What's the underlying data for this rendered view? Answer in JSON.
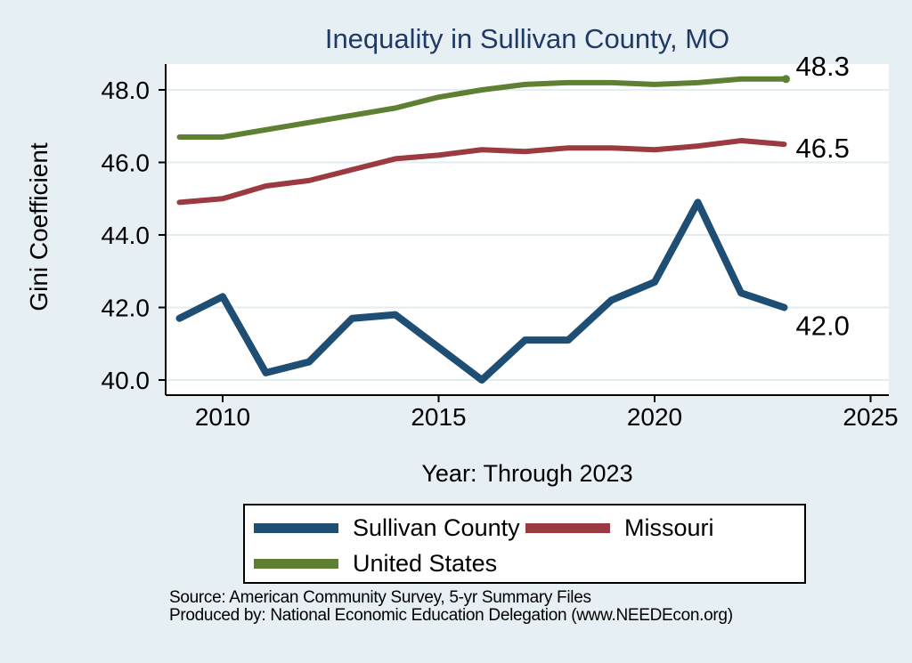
{
  "chart_data": {
    "type": "line",
    "title": "Inequality in Sullivan County, MO",
    "ylabel": "Gini Coefficient",
    "xlabel": "Year: Through 2023",
    "x": [
      2009,
      2010,
      2011,
      2012,
      2013,
      2014,
      2015,
      2016,
      2017,
      2018,
      2019,
      2020,
      2021,
      2022,
      2023
    ],
    "series": [
      {
        "name": "Sullivan County",
        "color": "#1f4e74",
        "values": [
          41.7,
          42.3,
          40.2,
          40.5,
          41.7,
          41.8,
          40.9,
          40.0,
          41.1,
          41.1,
          42.2,
          42.7,
          44.9,
          42.4,
          42.0
        ],
        "end_label": "42.0",
        "end_marker": false
      },
      {
        "name": "Missouri",
        "color": "#9b3a40",
        "values": [
          44.9,
          45.0,
          45.35,
          45.5,
          45.8,
          46.1,
          46.2,
          46.35,
          46.3,
          46.4,
          46.4,
          46.35,
          46.45,
          46.6,
          46.5
        ],
        "end_label": "46.5",
        "end_marker": false
      },
      {
        "name": "United States",
        "color": "#5f7f32",
        "values": [
          46.7,
          46.7,
          46.9,
          47.1,
          47.3,
          47.5,
          47.8,
          48.0,
          48.15,
          48.2,
          48.2,
          48.15,
          48.2,
          48.3,
          48.3
        ],
        "end_label": "48.3",
        "end_marker": true
      }
    ],
    "y_ticks": {
      "values": [
        40,
        42,
        44,
        46,
        48
      ],
      "labels": [
        "40.0",
        "42.0",
        "44.0",
        "46.0",
        "48.0"
      ]
    },
    "x_ticks": {
      "values": [
        2010,
        2015,
        2020,
        2025
      ],
      "labels": [
        "2010",
        "2015",
        "2020",
        "2025"
      ]
    },
    "xlim": [
      2008.7,
      2025.4
    ],
    "ylim": [
      39.6,
      48.7
    ],
    "grid": "horizontal",
    "legend_position": "bottom",
    "colors": {
      "figure_background": "#e6eff3",
      "plot_background": "#ffffff",
      "gridline": "#e2edf2",
      "axis": "#000000",
      "title": "#203a66",
      "text": "#000000"
    }
  },
  "source": {
    "line1": "Source: American Community Survey, 5-yr Summary Files",
    "line2": "Produced by: National Economic Education Delegation (www.NEEDEcon.org)"
  }
}
